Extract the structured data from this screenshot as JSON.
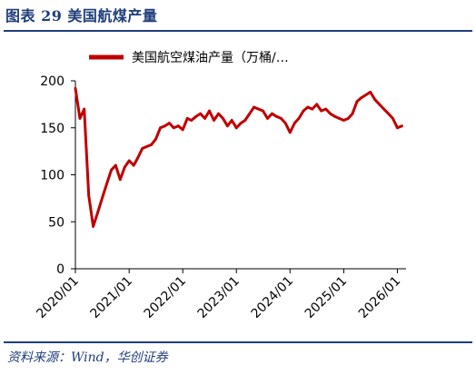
{
  "header": {
    "title": "图表  29  美国航煤产量"
  },
  "source_note": "资料来源：Wind，华创证券",
  "chart_data": {
    "type": "line",
    "title": "",
    "xlabel": "",
    "ylabel": "",
    "ylim": [
      0,
      200
    ],
    "yticks": [
      0,
      50,
      100,
      150,
      200
    ],
    "xticks": [
      "2020/01",
      "2021/01",
      "2022/01",
      "2023/01",
      "2024/01",
      "2025/01",
      "2026/01"
    ],
    "legend_position": "top",
    "grid": false,
    "colors": {
      "series": "#c00000",
      "axis": "#000000",
      "title": "#1f3e7a"
    },
    "series": [
      {
        "name": "美国航空煤油产量（万桶/…",
        "x": [
          "2020-01",
          "2020-02",
          "2020-03",
          "2020-04",
          "2020-05",
          "2020-06",
          "2020-07",
          "2020-08",
          "2020-09",
          "2020-10",
          "2020-11",
          "2020-12",
          "2021-01",
          "2021-02",
          "2021-03",
          "2021-04",
          "2021-05",
          "2021-06",
          "2021-07",
          "2021-08",
          "2021-09",
          "2021-10",
          "2021-11",
          "2021-12",
          "2022-01",
          "2022-02",
          "2022-03",
          "2022-04",
          "2022-05",
          "2022-06",
          "2022-07",
          "2022-08",
          "2022-09",
          "2022-10",
          "2022-11",
          "2022-12",
          "2023-01",
          "2023-02",
          "2023-03",
          "2023-04",
          "2023-05",
          "2023-06",
          "2023-07",
          "2023-08",
          "2023-09",
          "2023-10",
          "2023-11",
          "2023-12",
          "2024-01",
          "2024-02",
          "2024-03",
          "2024-04",
          "2024-05",
          "2024-06",
          "2024-07",
          "2024-08",
          "2024-09",
          "2024-10",
          "2024-11",
          "2024-12",
          "2025-01",
          "2025-02",
          "2025-03",
          "2025-04",
          "2025-05",
          "2025-06",
          "2025-07",
          "2025-08",
          "2025-09",
          "2025-10",
          "2025-11",
          "2025-12",
          "2026-01",
          "2026-02"
        ],
        "values": [
          192,
          160,
          170,
          78,
          45,
          60,
          75,
          90,
          105,
          110,
          95,
          108,
          115,
          110,
          118,
          128,
          130,
          132,
          138,
          150,
          152,
          155,
          150,
          152,
          148,
          160,
          158,
          162,
          165,
          160,
          168,
          158,
          165,
          160,
          152,
          158,
          150,
          155,
          158,
          165,
          172,
          170,
          168,
          160,
          165,
          162,
          160,
          155,
          145,
          155,
          160,
          168,
          172,
          170,
          175,
          168,
          170,
          165,
          162,
          160,
          158,
          160,
          165,
          178,
          182,
          185,
          188,
          180,
          175,
          170,
          165,
          160,
          150,
          152
        ]
      }
    ]
  }
}
